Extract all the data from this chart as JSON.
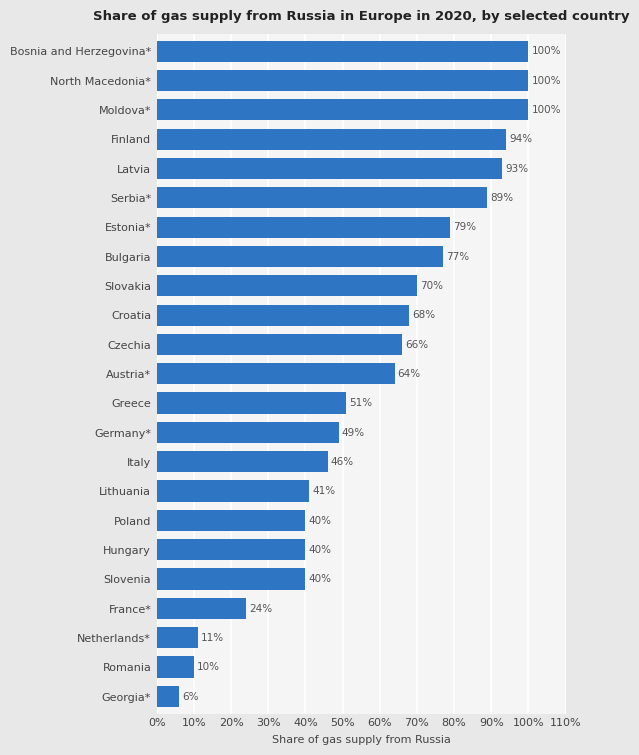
{
  "title": "Share of gas supply from Russia in Europe in 2020, by selected country",
  "xlabel": "Share of gas supply from Russia",
  "categories": [
    "Bosnia and Herzegovina*",
    "North Macedonia*",
    "Moldova*",
    "Finland",
    "Latvia",
    "Serbia*",
    "Estonia*",
    "Bulgaria",
    "Slovakia",
    "Croatia",
    "Czechia",
    "Austria*",
    "Greece",
    "Germany*",
    "Italy",
    "Lithuania",
    "Poland",
    "Hungary",
    "Slovenia",
    "France*",
    "Netherlands*",
    "Romania",
    "Georgia*"
  ],
  "values": [
    100,
    100,
    100,
    94,
    93,
    89,
    79,
    77,
    70,
    68,
    66,
    64,
    51,
    49,
    46,
    41,
    40,
    40,
    40,
    24,
    11,
    10,
    6
  ],
  "bar_color": "#2e75c3",
  "outer_background_color": "#e8e8e8",
  "plot_background_color": "#f5f5f5",
  "title_fontsize": 9.5,
  "label_fontsize": 8.0,
  "tick_fontsize": 8.0,
  "value_fontsize": 7.5,
  "xlim": [
    0,
    110
  ],
  "xticks": [
    0,
    10,
    20,
    30,
    40,
    50,
    60,
    70,
    80,
    90,
    100,
    110
  ],
  "xtick_labels": [
    "0%",
    "10%",
    "20%",
    "30%",
    "40%",
    "50%",
    "60%",
    "70%",
    "80%",
    "90%",
    "100%",
    "110%"
  ]
}
